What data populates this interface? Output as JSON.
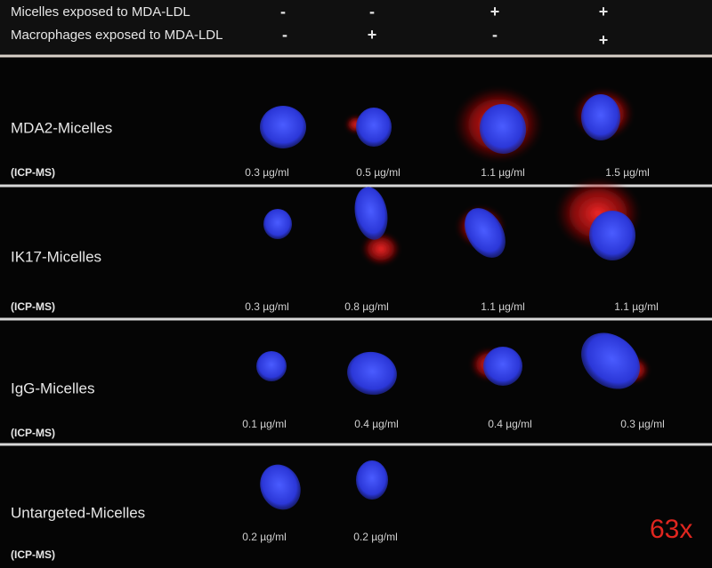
{
  "header": {
    "rows": [
      {
        "label": "Micelles exposed to MDA-LDL",
        "signs": [
          "-",
          "-",
          "+",
          "+"
        ]
      },
      {
        "label": "Macrophages exposed to MDA-LDL",
        "signs": [
          "-",
          "+",
          "-",
          "+"
        ]
      }
    ]
  },
  "panels": [
    {
      "label": "MDA2-Micelles",
      "method": "(ICP-MS)",
      "concentrations": [
        "0.3 µg/ml",
        "0.5 µg/ml",
        "1.1 µg/ml",
        "1.5 µg/ml"
      ]
    },
    {
      "label": "IK17-Micelles",
      "method": "(ICP-MS)",
      "concentrations": [
        "0.3 µg/ml",
        "0.8 µg/ml",
        "1.1 µg/ml",
        "1.1 µg/ml"
      ]
    },
    {
      "label": "IgG-Micelles",
      "method": "(ICP-MS)",
      "concentrations": [
        "0.1 µg/ml",
        "0.4 µg/ml",
        "0.4 µg/ml",
        "0.3 µg/ml"
      ]
    },
    {
      "label": "Untargeted-Micelles",
      "method": "(ICP-MS)",
      "concentrations": [
        "0.2 µg/ml",
        "0.2 µg/ml"
      ]
    }
  ],
  "magnification": "63x"
}
